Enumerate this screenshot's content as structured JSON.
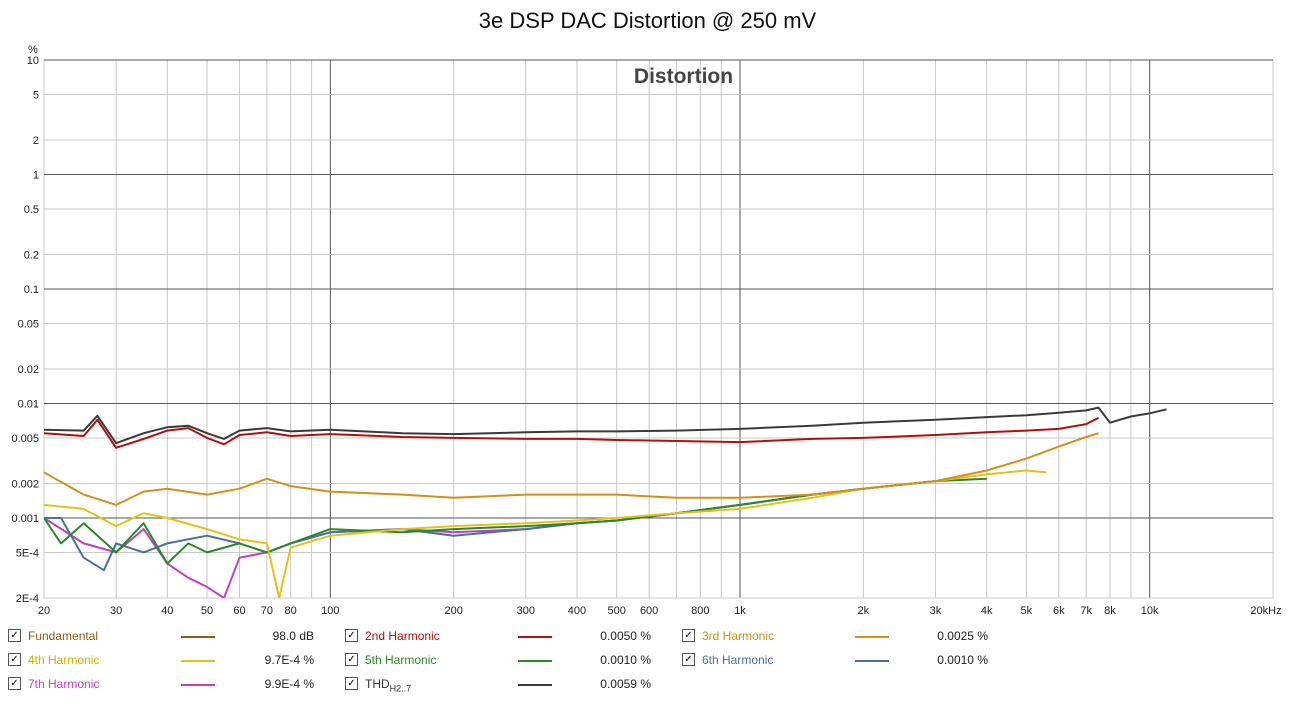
{
  "chart_data": {
    "type": "line",
    "title": "3e DSP DAC Distortion @ 250 mV",
    "subtitle": "Distortion",
    "ylabel_unit": "%",
    "xscale": "log",
    "yscale": "log",
    "xlim": [
      20,
      20000
    ],
    "ylim": [
      0.0002,
      10
    ],
    "grid": true,
    "legend_position": "bottom",
    "y_ticks": [
      "10",
      "5",
      "2",
      "1",
      "0.5",
      "0.2",
      "0.1",
      "0.05",
      "0.02",
      "0.01",
      "0.005",
      "0.002",
      "0.001",
      "5E-4",
      "2E-4"
    ],
    "y_tick_values": [
      10,
      5,
      2,
      1,
      0.5,
      0.2,
      0.1,
      0.05,
      0.02,
      0.01,
      0.005,
      0.002,
      0.001,
      0.0005,
      0.0002
    ],
    "x_ticks": [
      "20",
      "30",
      "40",
      "50",
      "60",
      "70",
      "80",
      "100",
      "200",
      "300",
      "400",
      "500",
      "600",
      "800",
      "1k",
      "2k",
      "3k",
      "4k",
      "5k",
      "6k",
      "7k",
      "8k",
      "10k",
      "20kHz"
    ],
    "x_tick_values": [
      20,
      30,
      40,
      50,
      60,
      70,
      80,
      100,
      200,
      300,
      400,
      500,
      600,
      800,
      1000,
      2000,
      3000,
      4000,
      5000,
      6000,
      7000,
      8000,
      10000,
      20000
    ],
    "series": [
      {
        "name": "THD",
        "color": "#3a3a3a",
        "x": [
          20,
          25,
          27,
          30,
          35,
          40,
          45,
          50,
          55,
          60,
          70,
          80,
          100,
          150,
          200,
          300,
          400,
          500,
          700,
          1000,
          1500,
          2000,
          3000,
          4000,
          5000,
          6000,
          7000,
          7500,
          8000,
          9000,
          10000,
          11000
        ],
        "y": [
          0.0059,
          0.0058,
          0.0078,
          0.0045,
          0.0055,
          0.0062,
          0.0064,
          0.0055,
          0.0049,
          0.0058,
          0.0061,
          0.0057,
          0.0059,
          0.0055,
          0.0054,
          0.0056,
          0.0057,
          0.0057,
          0.0058,
          0.006,
          0.0064,
          0.0068,
          0.0072,
          0.0076,
          0.0079,
          0.0083,
          0.0087,
          0.0092,
          0.0068,
          0.0077,
          0.0082,
          0.0089
        ]
      },
      {
        "name": "2nd Harmonic",
        "color": "#b01010",
        "x": [
          20,
          25,
          27,
          30,
          35,
          40,
          45,
          50,
          55,
          60,
          70,
          80,
          100,
          150,
          200,
          300,
          400,
          500,
          700,
          1000,
          1500,
          2000,
          3000,
          4000,
          5000,
          6000,
          7000,
          7500
        ],
        "y": [
          0.0055,
          0.0052,
          0.0072,
          0.0041,
          0.0049,
          0.0058,
          0.0061,
          0.005,
          0.0044,
          0.0053,
          0.0056,
          0.0052,
          0.0054,
          0.0051,
          0.005,
          0.0049,
          0.0049,
          0.0048,
          0.0047,
          0.0046,
          0.0049,
          0.005,
          0.0053,
          0.0056,
          0.0058,
          0.006,
          0.0066,
          0.0075
        ]
      },
      {
        "name": "3rd Harmonic",
        "color": "#d4901a",
        "x": [
          20,
          25,
          30,
          35,
          40,
          50,
          60,
          70,
          80,
          100,
          150,
          200,
          300,
          400,
          500,
          700,
          1000,
          1500,
          2000,
          3000,
          4000,
          5000,
          6000,
          7000,
          7500
        ],
        "y": [
          0.0025,
          0.0016,
          0.0013,
          0.0017,
          0.0018,
          0.0016,
          0.0018,
          0.0022,
          0.0019,
          0.0017,
          0.0016,
          0.0015,
          0.0016,
          0.0016,
          0.0016,
          0.0015,
          0.0015,
          0.0016,
          0.0018,
          0.0021,
          0.0026,
          0.0033,
          0.0042,
          0.0051,
          0.0055
        ]
      },
      {
        "name": "4th Harmonic",
        "color": "#e5c21a",
        "x": [
          20,
          25,
          30,
          35,
          40,
          50,
          60,
          70,
          75,
          80,
          100,
          150,
          200,
          300,
          400,
          500,
          700,
          1000,
          1500,
          2000,
          3000,
          4000,
          5000,
          5600
        ],
        "y": [
          0.0013,
          0.0012,
          0.00085,
          0.0011,
          0.001,
          0.0008,
          0.00065,
          0.0006,
          0.0002,
          0.00055,
          0.0007,
          0.0008,
          0.00085,
          0.0009,
          0.00095,
          0.001,
          0.0011,
          0.0012,
          0.0015,
          0.0018,
          0.0021,
          0.0024,
          0.0026,
          0.0025
        ]
      },
      {
        "name": "5th Harmonic",
        "color": "#2a8a2a",
        "x": [
          20,
          22,
          25,
          30,
          35,
          40,
          45,
          50,
          60,
          70,
          80,
          100,
          150,
          200,
          300,
          400,
          500,
          700,
          1000,
          1500,
          2000,
          3000,
          4000
        ],
        "y": [
          0.001,
          0.0006,
          0.0009,
          0.0005,
          0.0009,
          0.0004,
          0.0006,
          0.0005,
          0.0006,
          0.0005,
          0.0006,
          0.0008,
          0.00075,
          0.0008,
          0.00085,
          0.0009,
          0.00095,
          0.0011,
          0.0013,
          0.0016,
          0.0018,
          0.0021,
          0.0022
        ]
      },
      {
        "name": "6th Harmonic",
        "color": "#4a6fa5",
        "x": [
          20,
          22,
          25,
          28,
          30,
          35,
          40,
          50,
          60,
          70,
          80,
          100,
          150,
          200,
          300,
          400,
          500,
          700,
          1000,
          1500,
          2000,
          3000,
          3500
        ],
        "y": [
          0.001,
          0.001,
          0.00045,
          0.00035,
          0.0006,
          0.0005,
          0.0006,
          0.0007,
          0.0006,
          0.0005,
          0.0006,
          0.00075,
          0.0008,
          0.0007,
          0.0008,
          0.0009,
          0.00095,
          0.0011,
          0.0013,
          0.0016,
          0.0018,
          0.0021,
          0.0023
        ]
      },
      {
        "name": "7th Harmonic",
        "color": "#c040c0",
        "x": [
          20,
          25,
          30,
          35,
          40,
          45,
          50,
          55,
          60,
          70,
          80,
          100,
          150,
          200,
          300,
          400,
          500,
          700,
          1000,
          1500,
          2000,
          3000
        ],
        "y": [
          0.001,
          0.0006,
          0.0005,
          0.0008,
          0.0004,
          0.0003,
          0.00025,
          0.0002,
          0.00045,
          0.0005,
          0.0006,
          0.00075,
          0.0008,
          0.00075,
          0.0008,
          0.0009,
          0.00095,
          0.0011,
          0.0013,
          0.0016,
          0.0018,
          0.0021
        ]
      },
      {
        "name": "Fundamental",
        "color": "#8b5a1a",
        "x": [],
        "y": []
      }
    ]
  },
  "legend": {
    "items": [
      {
        "name": "Fundamental",
        "value": "98.0 dB",
        "color": "#8b5a1a",
        "text_color": "#8b5a1a"
      },
      {
        "name": "2nd Harmonic",
        "value": "0.0050 %",
        "color": "#b01010",
        "text_color": "#b01010"
      },
      {
        "name": "3rd Harmonic",
        "value": "0.0025 %",
        "color": "#d4901a",
        "text_color": "#d4901a"
      },
      {
        "name": "4th Harmonic",
        "value": "9.7E-4 %",
        "color": "#e5c21a",
        "text_color": "#d4b000"
      },
      {
        "name": "5th Harmonic",
        "value": "0.0010 %",
        "color": "#2a8a2a",
        "text_color": "#2a8a2a"
      },
      {
        "name": "6th Harmonic",
        "value": "0.0010 %",
        "color": "#4a6fa5",
        "text_color": "#4a6fa5"
      },
      {
        "name": "7th Harmonic",
        "value": "9.9E-4 %",
        "color": "#c040c0",
        "text_color": "#c040c0"
      },
      {
        "name": "THD",
        "sub": "H2..7",
        "value": "0.0059 %",
        "color": "#3a3a3a",
        "text_color": "#333333"
      }
    ],
    "checkmark": "✓"
  }
}
